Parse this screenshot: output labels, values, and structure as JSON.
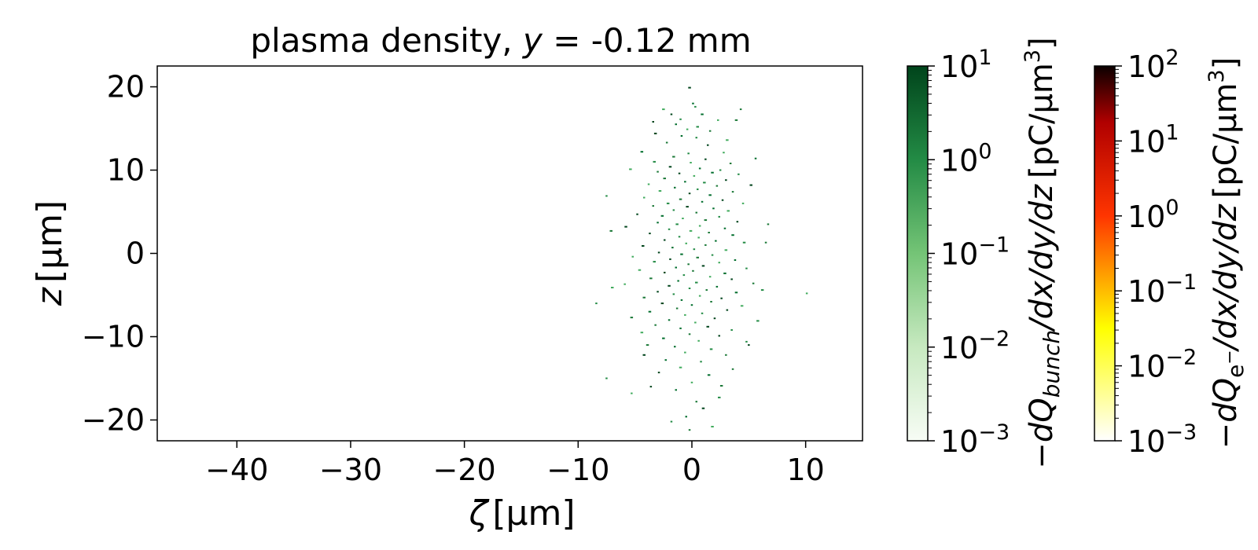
{
  "chart_data": {
    "type": "scatter",
    "title": {
      "prefix": "plasma density, ",
      "var": "y",
      "suffix": " = -0.12 mm"
    },
    "xlabel": {
      "sym": "ζ",
      "unit": "[μm]"
    },
    "ylabel": {
      "sym": "z",
      "unit": "[μm]"
    },
    "xlim": [
      -47,
      15
    ],
    "ylim": [
      -22.5,
      22.5
    ],
    "xticks": [
      -40,
      -30,
      -20,
      -10,
      0,
      10
    ],
    "xtick_labels": [
      "−40",
      "−30",
      "−20",
      "−10",
      "0",
      "10"
    ],
    "yticks": [
      -20,
      -10,
      0,
      10,
      20
    ],
    "ytick_labels": [
      "−20",
      "−10",
      "0",
      "10",
      "20"
    ],
    "grid": false,
    "points": [
      [
        -0.2,
        19.9
      ],
      [
        0.1,
        18.0
      ],
      [
        0.3,
        17.6
      ],
      [
        -2.5,
        17.3
      ],
      [
        4.3,
        17.3
      ],
      [
        -1.8,
        16.7
      ],
      [
        0.9,
        16.7
      ],
      [
        -1.0,
        16.1
      ],
      [
        2.3,
        16.0
      ],
      [
        3.9,
        16.0
      ],
      [
        -3.4,
        15.8
      ],
      [
        -1.4,
        15.5
      ],
      [
        0.5,
        15.2
      ],
      [
        -0.4,
        14.9
      ],
      [
        1.6,
        14.7
      ],
      [
        -3.2,
        14.4
      ],
      [
        -0.9,
        14.1
      ],
      [
        0.4,
        13.9
      ],
      [
        3.1,
        13.6
      ],
      [
        -2.2,
        13.3
      ],
      [
        1.4,
        13.0
      ],
      [
        -4.4,
        12.2
      ],
      [
        -0.3,
        12.0
      ],
      [
        2.8,
        12.1
      ],
      [
        -1.6,
        11.6
      ],
      [
        1.2,
        11.3
      ],
      [
        5.6,
        11.4
      ],
      [
        -3.3,
        11.0
      ],
      [
        -0.1,
        10.9
      ],
      [
        3.4,
        10.8
      ],
      [
        -1.9,
        10.4
      ],
      [
        0.7,
        10.2
      ],
      [
        2.5,
        10.0
      ],
      [
        -5.4,
        10.1
      ],
      [
        -3.0,
        9.8
      ],
      [
        -1.1,
        9.6
      ],
      [
        1.8,
        9.7
      ],
      [
        4.1,
        9.5
      ],
      [
        0.2,
        9.3
      ],
      [
        -2.4,
        9.0
      ],
      [
        3.0,
        8.8
      ],
      [
        -0.6,
        8.6
      ],
      [
        1.1,
        8.5
      ],
      [
        -3.8,
        8.3
      ],
      [
        2.2,
        8.1
      ],
      [
        5.2,
        8.2
      ],
      [
        -1.5,
        7.9
      ],
      [
        0.5,
        7.7
      ],
      [
        -2.8,
        7.5
      ],
      [
        3.6,
        7.4
      ],
      [
        -0.2,
        7.2
      ],
      [
        1.6,
        7.0
      ],
      [
        -7.5,
        6.9
      ],
      [
        -4.2,
        6.7
      ],
      [
        -1.0,
        6.5
      ],
      [
        2.7,
        6.4
      ],
      [
        0.9,
        6.2
      ],
      [
        -2.1,
        6.0
      ],
      [
        4.5,
        6.0
      ],
      [
        -3.4,
        5.7
      ],
      [
        -0.4,
        5.6
      ],
      [
        1.9,
        5.4
      ],
      [
        -1.6,
        5.2
      ],
      [
        3.2,
        5.1
      ],
      [
        0.4,
        4.9
      ],
      [
        -4.8,
        4.7
      ],
      [
        -2.6,
        4.5
      ],
      [
        2.4,
        4.4
      ],
      [
        -0.8,
        4.2
      ],
      [
        1.2,
        4.0
      ],
      [
        4.0,
        3.8
      ],
      [
        -3.0,
        3.7
      ],
      [
        -1.3,
        3.5
      ],
      [
        0.7,
        3.3
      ],
      [
        6.7,
        3.5
      ],
      [
        -5.8,
        3.2
      ],
      [
        2.9,
        3.0
      ],
      [
        -2.0,
        2.9
      ],
      [
        -0.1,
        2.7
      ],
      [
        1.5,
        2.5
      ],
      [
        -3.7,
        2.4
      ],
      [
        3.6,
        2.2
      ],
      [
        -1.1,
        2.0
      ],
      [
        0.6,
        1.9
      ],
      [
        -7.1,
        2.7
      ],
      [
        -2.4,
        1.6
      ],
      [
        2.1,
        1.5
      ],
      [
        4.6,
        1.3
      ],
      [
        -0.5,
        1.2
      ],
      [
        1.2,
        1.0
      ],
      [
        -4.3,
        0.9
      ],
      [
        -1.7,
        0.7
      ],
      [
        0.2,
        0.5
      ],
      [
        3.0,
        0.4
      ],
      [
        6.5,
        1.3
      ],
      [
        -2.9,
        0.1
      ],
      [
        -0.9,
        -0.1
      ],
      [
        1.8,
        -0.2
      ],
      [
        -5.2,
        -0.4
      ],
      [
        0.5,
        -0.5
      ],
      [
        -1.9,
        -0.7
      ],
      [
        3.8,
        -0.8
      ],
      [
        -3.3,
        -1.0
      ],
      [
        2.4,
        -1.1
      ],
      [
        -0.3,
        -1.3
      ],
      [
        1.0,
        -1.5
      ],
      [
        -1.4,
        -1.7
      ],
      [
        4.8,
        -1.8
      ],
      [
        -4.6,
        -2.0
      ],
      [
        0.1,
        -2.1
      ],
      [
        -2.4,
        -2.3
      ],
      [
        2.9,
        -2.4
      ],
      [
        -0.7,
        -2.6
      ],
      [
        1.6,
        -2.8
      ],
      [
        -3.6,
        -3.0
      ],
      [
        3.5,
        -3.1
      ],
      [
        -1.2,
        -3.3
      ],
      [
        0.4,
        -3.5
      ],
      [
        -5.9,
        -3.7
      ],
      [
        5.4,
        -3.6
      ],
      [
        -2.0,
        -3.9
      ],
      [
        2.2,
        -4.0
      ],
      [
        -0.2,
        -4.2
      ],
      [
        -7.0,
        -4.1
      ],
      [
        1.3,
        -4.4
      ],
      [
        -3.0,
        -4.6
      ],
      [
        3.9,
        -4.7
      ],
      [
        -1.6,
        -4.9
      ],
      [
        0.7,
        -5.1
      ],
      [
        -4.2,
        -5.3
      ],
      [
        2.6,
        -5.4
      ],
      [
        -0.9,
        -5.6
      ],
      [
        6.2,
        -4.4
      ],
      [
        10.1,
        -4.8
      ],
      [
        1.7,
        -5.8
      ],
      [
        -2.6,
        -6.0
      ],
      [
        0.0,
        -6.2
      ],
      [
        -8.4,
        -6.0
      ],
      [
        4.4,
        -6.3
      ],
      [
        -1.3,
        -6.6
      ],
      [
        3.1,
        -6.8
      ],
      [
        -3.7,
        -7.0
      ],
      [
        0.9,
        -7.2
      ],
      [
        -0.6,
        -7.4
      ],
      [
        -5.3,
        -7.7
      ],
      [
        2.0,
        -7.8
      ],
      [
        -2.0,
        -8.0
      ],
      [
        5.8,
        -8.1
      ],
      [
        0.3,
        -8.3
      ],
      [
        -3.2,
        -8.6
      ],
      [
        1.4,
        -8.8
      ],
      [
        -1.0,
        -9.0
      ],
      [
        3.5,
        -9.2
      ],
      [
        -4.4,
        -9.5
      ],
      [
        -0.2,
        -9.7
      ],
      [
        2.4,
        -9.9
      ],
      [
        -2.5,
        -10.2
      ],
      [
        4.8,
        -10.6
      ],
      [
        0.6,
        -10.5
      ],
      [
        -3.9,
        -11.0
      ],
      [
        5.0,
        -11.0
      ],
      [
        -1.5,
        -11.2
      ],
      [
        1.7,
        -11.5
      ],
      [
        -0.6,
        -11.9
      ],
      [
        3.0,
        -12.2
      ],
      [
        -4.2,
        -12.2
      ],
      [
        -2.3,
        -12.8
      ],
      [
        0.8,
        -13.0
      ],
      [
        -1.0,
        -13.7
      ],
      [
        3.6,
        -13.9
      ],
      [
        -2.9,
        -14.3
      ],
      [
        1.5,
        -14.6
      ],
      [
        -7.5,
        -15.0
      ],
      [
        0.0,
        -15.5
      ],
      [
        2.6,
        -15.9
      ],
      [
        -3.6,
        -16.0
      ],
      [
        -1.4,
        -16.4
      ],
      [
        2.4,
        -17.3
      ],
      [
        -5.3,
        -16.8
      ],
      [
        0.4,
        -17.8
      ],
      [
        1.0,
        -18.6
      ],
      [
        -0.5,
        -19.6
      ],
      [
        -1.8,
        -20.2
      ],
      [
        1.8,
        -20.8
      ],
      [
        -0.2,
        -21.2
      ]
    ],
    "colorbars": [
      {
        "cmap": "Greens",
        "tick_exponents": [
          "1",
          "0",
          "−1",
          "−2",
          "−3"
        ],
        "tick_base": "10",
        "label": {
          "minus": "−",
          "d1": "d",
          "Q": "Q",
          "sub": "bunch",
          "rest": "/dx/dy/dz",
          "unit_open": "[pC/μm",
          "unit_exp": "3",
          "unit_close": "]"
        }
      },
      {
        "cmap": "hot_r",
        "tick_exponents": [
          "2",
          "1",
          "0",
          "−1",
          "−2",
          "−3"
        ],
        "tick_base": "10",
        "label": {
          "minus": "−",
          "d1": "d",
          "Q": "Q",
          "sub": "e",
          "sub_sup": "−",
          "rest": "/dx/dy/dz",
          "unit_open": "[pC/μm",
          "unit_exp": "3",
          "unit_close": "]"
        }
      }
    ]
  }
}
